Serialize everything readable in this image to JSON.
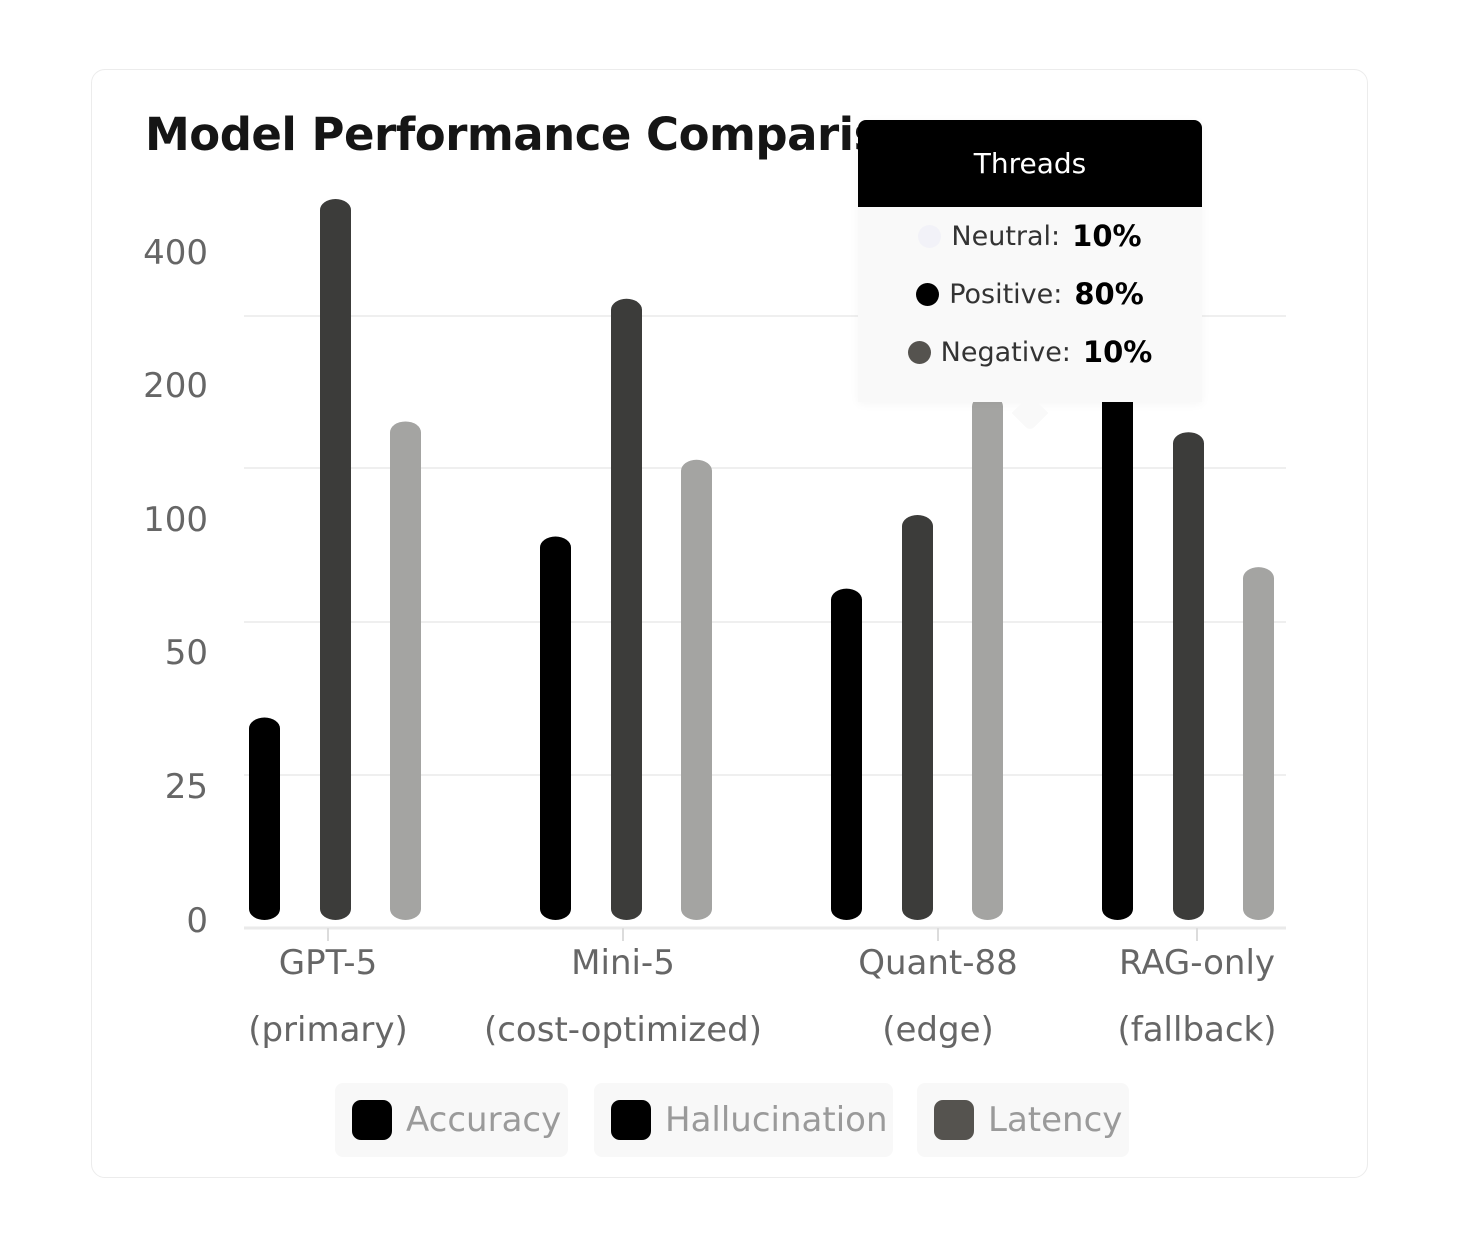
{
  "chart_data": {
    "type": "bar",
    "title": "Model Performance Comparison",
    "categories": [
      "GPT-5 (primary)",
      "Mini-5 (cost-optimized)",
      "Quant-88 (edge)",
      "RAG-only (fallback)"
    ],
    "category_lines": [
      [
        "GPT-5",
        "(primary)"
      ],
      [
        "Mini-5",
        "(cost-optimized)"
      ],
      [
        "Quant-88",
        "(edge)"
      ],
      [
        "RAG-only",
        "(fallback)"
      ]
    ],
    "series": [
      {
        "name": "Accuracy",
        "color": "#000000",
        "values": [
          33,
          75,
          58,
          155
        ]
      },
      {
        "name": "Hallucination",
        "color": "#3c3c3a",
        "values": [
          340,
          210,
          82,
          118
        ]
      },
      {
        "name": "Latency",
        "color": "#a4a4a2",
        "values": [
          125,
          100,
          142,
          65
        ]
      }
    ],
    "y_ticks": [
      0,
      25,
      50,
      100,
      200,
      400
    ],
    "y_tick_labels": [
      "0",
      "25",
      "50",
      "100",
      "200",
      "400"
    ],
    "ylim": [
      0,
      400
    ],
    "y_scale": "ordinal-log (evenly spaced ticks 0, 25, 50, 100, 200, 400)",
    "grid": true,
    "legend_position": "bottom"
  },
  "legend": [
    {
      "label": "Accuracy",
      "color": "#000000"
    },
    {
      "label": "Hallucination",
      "color": "#000000"
    },
    {
      "label": "Latency",
      "color": "#55534f"
    }
  ],
  "tooltip": {
    "title": "Threads",
    "rows": [
      {
        "label": "Neutral:",
        "value": "10%",
        "color": "#f2f2f8"
      },
      {
        "label": "Positive:",
        "value": "80%",
        "color": "#000000"
      },
      {
        "label": "Negative:",
        "value": "10%",
        "color": "#55534f"
      }
    ]
  }
}
